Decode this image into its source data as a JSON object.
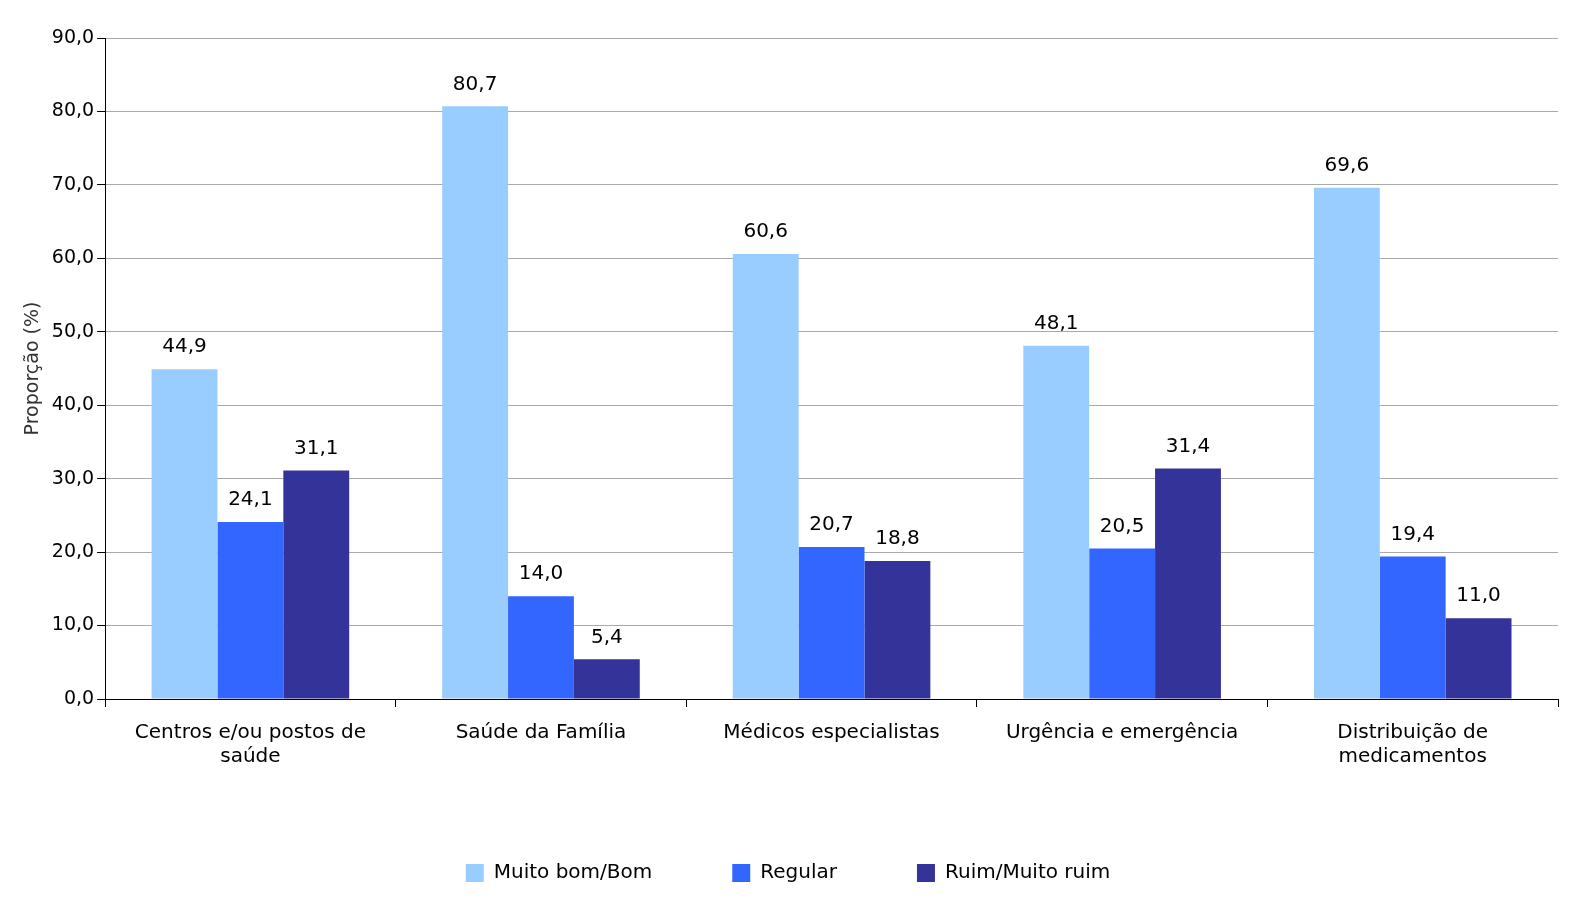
{
  "chart_data": {
    "type": "bar",
    "ylabel": "Proporção (%)",
    "categories": [
      "Centros e/ou postos de saúde",
      "Saúde da Família",
      "Médicos especialistas",
      "Urgência e emergência",
      "Distribuição de medicamentos"
    ],
    "series": [
      {
        "name": "Muito bom/Bom",
        "color": "#99ccff",
        "values": [
          44.9,
          80.7,
          60.6,
          48.1,
          69.6
        ],
        "value_labels": [
          "44,9",
          "80,7",
          "60,6",
          "48,1",
          "69,6"
        ]
      },
      {
        "name": "Regular",
        "color": "#3366ff",
        "values": [
          24.1,
          14.0,
          20.7,
          20.5,
          19.4
        ],
        "value_labels": [
          "24,1",
          "14,0",
          "20,7",
          "20,5",
          "19,4"
        ]
      },
      {
        "name": "Ruim/Muito ruim",
        "color": "#333399",
        "values": [
          31.1,
          5.4,
          18.8,
          31.4,
          11.0
        ],
        "value_labels": [
          "31,1",
          "5,4",
          "18,8",
          "31,4",
          "11,0"
        ]
      }
    ],
    "ylim": [
      0,
      90
    ],
    "yticks": [
      {
        "value": 0,
        "label": "0,0"
      },
      {
        "value": 10,
        "label": "10,0"
      },
      {
        "value": 20,
        "label": "20,0"
      },
      {
        "value": 30,
        "label": "30,0"
      },
      {
        "value": 40,
        "label": "40,0"
      },
      {
        "value": 50,
        "label": "50,0"
      },
      {
        "value": 60,
        "label": "60,0"
      },
      {
        "value": 70,
        "label": "70,0"
      },
      {
        "value": 80,
        "label": "80,0"
      },
      {
        "value": 90,
        "label": "90,0"
      }
    ],
    "grid": "y",
    "legend": "bottom"
  }
}
